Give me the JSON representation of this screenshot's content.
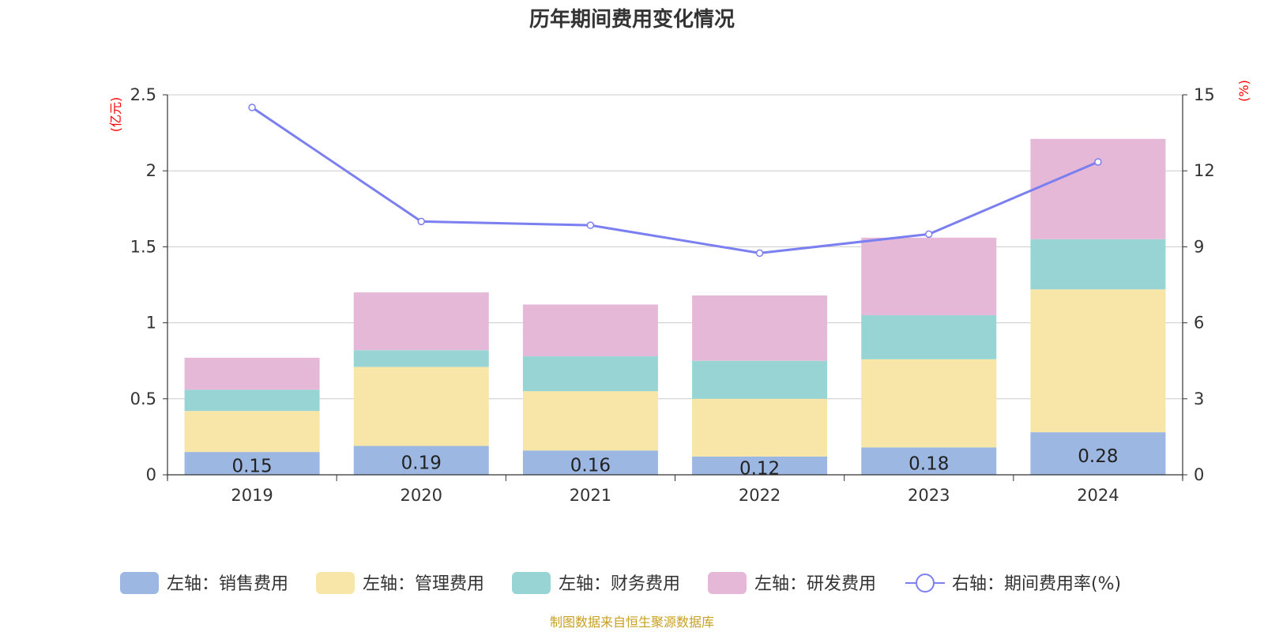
{
  "chart_data": {
    "type": "bar",
    "title": "历年期间费用变化情况",
    "categories": [
      "2019",
      "2020",
      "2021",
      "2022",
      "2023",
      "2024"
    ],
    "left_axis": {
      "unit_label": "(亿元)",
      "ylim": [
        0,
        2.5
      ],
      "ticks": [
        "0",
        "0.5",
        "1",
        "1.5",
        "2",
        "2.5"
      ]
    },
    "right_axis": {
      "unit_label": "(%)",
      "ylim": [
        0,
        15
      ],
      "ticks": [
        "0",
        "3",
        "6",
        "9",
        "12",
        "15"
      ]
    },
    "series": [
      {
        "name": "左轴：销售费用",
        "type": "bar",
        "axis": "left",
        "color": "#9bb7e2",
        "values": [
          0.15,
          0.19,
          0.16,
          0.12,
          0.18,
          0.28
        ],
        "data_labels": [
          "0.15",
          "0.19",
          "0.16",
          "0.12",
          "0.18",
          "0.28"
        ]
      },
      {
        "name": "左轴：管理费用",
        "type": "bar",
        "axis": "left",
        "color": "#f7e6a7",
        "values": [
          0.27,
          0.52,
          0.39,
          0.38,
          0.58,
          0.94
        ]
      },
      {
        "name": "左轴：财务费用",
        "type": "bar",
        "axis": "left",
        "color": "#98d4d4",
        "values": [
          0.14,
          0.11,
          0.23,
          0.25,
          0.29,
          0.33
        ]
      },
      {
        "name": "左轴：研发费用",
        "type": "bar",
        "axis": "left",
        "color": "#e6b8d8",
        "values": [
          0.21,
          0.38,
          0.34,
          0.43,
          0.51,
          0.66
        ]
      },
      {
        "name": "右轴：期间费用率(%)",
        "type": "line",
        "axis": "right",
        "color": "#7b7fef",
        "values": [
          14.5,
          10.0,
          9.85,
          8.75,
          9.5,
          12.35
        ]
      }
    ],
    "grid": true,
    "legend_position": "bottom"
  },
  "source_note": "制图数据来自恒生聚源数据库"
}
